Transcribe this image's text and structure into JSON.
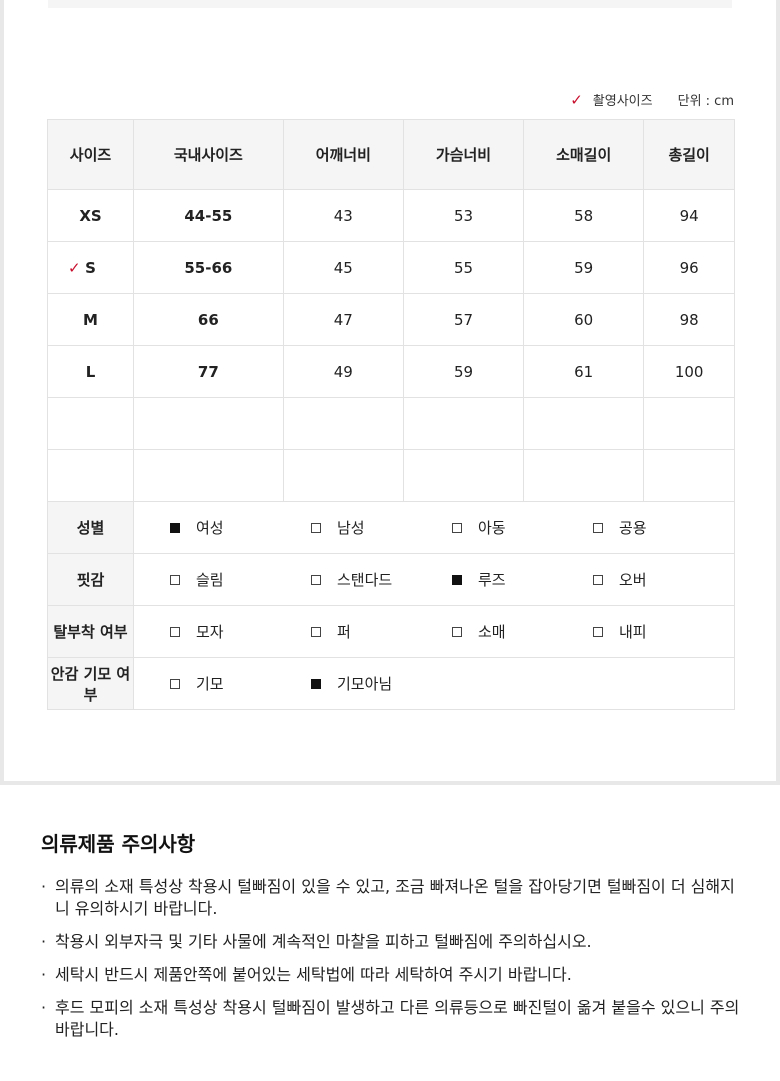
{
  "legend": {
    "check_icon": "checkmark",
    "shoot_size": "촬영사이즈",
    "unit": "단위 : cm"
  },
  "colors": {
    "accent": "#c8102e"
  },
  "table": {
    "headers": [
      "사이즈",
      "국내사이즈",
      "어깨너비",
      "가슴너비",
      "소매길이",
      "총길이"
    ],
    "rows": [
      {
        "size": "XS",
        "kr": "44-55",
        "shoulder": "43",
        "chest": "53",
        "sleeve": "58",
        "length": "94",
        "shoot": false
      },
      {
        "size": "S",
        "kr": "55-66",
        "shoulder": "45",
        "chest": "55",
        "sleeve": "59",
        "length": "96",
        "shoot": true
      },
      {
        "size": "M",
        "kr": "66",
        "shoulder": "47",
        "chest": "57",
        "sleeve": "60",
        "length": "98",
        "shoot": false
      },
      {
        "size": "L",
        "kr": "77",
        "shoulder": "49",
        "chest": "59",
        "sleeve": "61",
        "length": "100",
        "shoot": false
      }
    ],
    "attributes": [
      {
        "label": "성별",
        "options": [
          {
            "text": "여성",
            "checked": true
          },
          {
            "text": "남성",
            "checked": false
          },
          {
            "text": "아동",
            "checked": false
          },
          {
            "text": "공용",
            "checked": false
          }
        ]
      },
      {
        "label": "핏감",
        "options": [
          {
            "text": "슬림",
            "checked": false
          },
          {
            "text": "스탠다드",
            "checked": false
          },
          {
            "text": "루즈",
            "checked": true
          },
          {
            "text": "오버",
            "checked": false
          }
        ]
      },
      {
        "label": "탈부착 여부",
        "options": [
          {
            "text": "모자",
            "checked": false
          },
          {
            "text": "퍼",
            "checked": false
          },
          {
            "text": "소매",
            "checked": false
          },
          {
            "text": "내피",
            "checked": false
          }
        ]
      },
      {
        "label": "안감 기모 여부",
        "options": [
          {
            "text": "기모",
            "checked": false
          },
          {
            "text": "기모아님",
            "checked": true
          }
        ]
      }
    ]
  },
  "notes": {
    "title": "의류제품 주의사항",
    "items": [
      "의류의 소재 특성상 착용시 털빠짐이 있을 수 있고, 조금 빠져나온 털을 잡아당기면 털빠짐이 더 심해지니 유의하시기 바랍니다.",
      "착용시 외부자극 및 기타 사물에 계속적인 마찰을 피하고 털빠짐에 주의하십시오.",
      "세탁시 반드시 제품안쪽에 붙어있는 세탁법에 따라 세탁하여 주시기 바랍니다.",
      "후드 모피의 소재 특성상 착용시 털빠짐이 발생하고 다른 의류등으로 빠진털이 옮겨 붙을수 있으니 주의 바랍니다."
    ]
  }
}
